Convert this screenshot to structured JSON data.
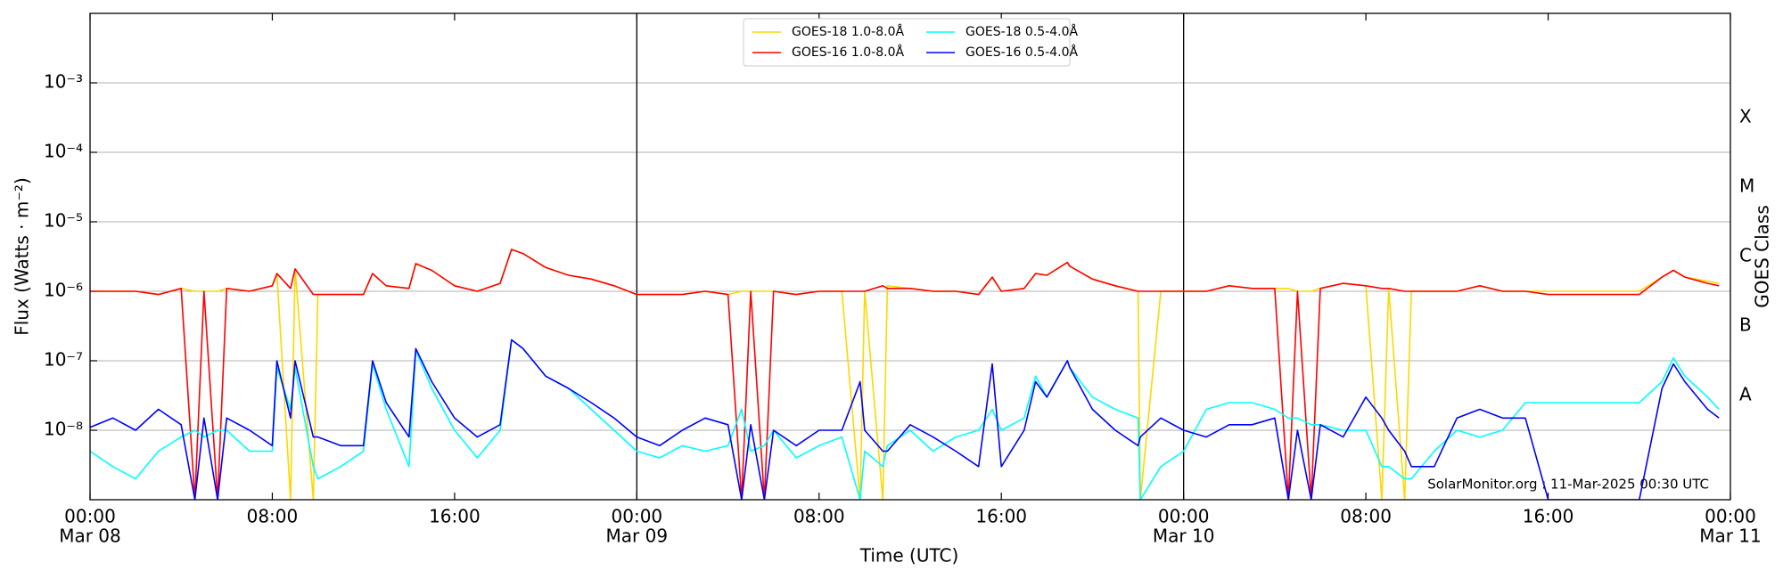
{
  "chart_data": {
    "type": "line",
    "x_label": "Time (UTC)",
    "y_label": "Flux (Watts · m⁻²)",
    "y2_label": "GOES Class",
    "annotation": "SolarMonitor.org : 11-Mar-2025 00:30 UTC",
    "ylog": true,
    "grid": true,
    "day_lines": true,
    "legend": "upper center",
    "xlim": [
      "Mar 08 00:00",
      "Mar 11 00:00"
    ],
    "xticks": [
      {
        "value": "Mar 08 00:00",
        "label": "00:00",
        "date": "Mar 08"
      },
      {
        "value": "Mar 08 08:00",
        "label": "08:00"
      },
      {
        "value": "Mar 08 16:00",
        "label": "16:00"
      },
      {
        "value": "Mar 09 00:00",
        "label": "00:00",
        "date": "Mar 09"
      },
      {
        "value": "Mar 09 08:00",
        "label": "08:00"
      },
      {
        "value": "Mar 09 16:00",
        "label": "16:00"
      },
      {
        "value": "Mar 10 00:00",
        "label": "00:00",
        "date": "Mar 10"
      },
      {
        "value": "Mar 10 08:00",
        "label": "08:00"
      },
      {
        "value": "Mar 10 16:00",
        "label": "16:00"
      },
      {
        "value": "Mar 11 00:00",
        "label": "00:00",
        "date": "Mar 11"
      }
    ],
    "ylim": [
      1e-09,
      0.01
    ],
    "yticks": [
      {
        "value": 1e-08,
        "label": "10⁻⁸"
      },
      {
        "value": 1e-07,
        "label": "10⁻⁷"
      },
      {
        "value": 1e-06,
        "label": "10⁻⁶"
      },
      {
        "value": 1e-05,
        "label": "10⁻⁵"
      },
      {
        "value": 0.0001,
        "label": "10⁻⁴"
      },
      {
        "value": 0.001,
        "label": "10⁻³"
      }
    ],
    "y2lim": [
      1e-09,
      0.01
    ],
    "y2ticks": [
      {
        "value": 3.16e-08,
        "label": "A"
      },
      {
        "value": 3.16e-07,
        "label": "B"
      },
      {
        "value": 3.16e-06,
        "label": "C"
      },
      {
        "value": 3.16e-05,
        "label": "M"
      },
      {
        "value": 0.000316,
        "label": "X"
      }
    ],
    "x": [
      "Mar 08 00:00",
      "Mar 08 01:00",
      "Mar 08 02:00",
      "Mar 08 03:00",
      "Mar 08 04:00",
      "Mar 08 04:36",
      "Mar 08 05:00",
      "Mar 08 05:36",
      "Mar 08 06:00",
      "Mar 08 07:00",
      "Mar 08 08:00",
      "Mar 08 08:12",
      "Mar 08 08:48",
      "Mar 08 09:00",
      "Mar 08 09:48",
      "Mar 08 10:00",
      "Mar 08 11:00",
      "Mar 08 12:00",
      "Mar 08 12:24",
      "Mar 08 13:00",
      "Mar 08 14:00",
      "Mar 08 14:18",
      "Mar 08 15:00",
      "Mar 08 16:00",
      "Mar 08 17:00",
      "Mar 08 18:00",
      "Mar 08 18:30",
      "Mar 08 19:00",
      "Mar 08 20:00",
      "Mar 08 21:00",
      "Mar 08 22:00",
      "Mar 08 23:00",
      "Mar 09 00:00",
      "Mar 09 01:00",
      "Mar 09 02:00",
      "Mar 09 03:00",
      "Mar 09 04:00",
      "Mar 09 04:36",
      "Mar 09 05:00",
      "Mar 09 05:36",
      "Mar 09 06:00",
      "Mar 09 07:00",
      "Mar 09 08:00",
      "Mar 09 09:00",
      "Mar 09 09:48",
      "Mar 09 10:00",
      "Mar 09 10:48",
      "Mar 09 11:00",
      "Mar 09 12:00",
      "Mar 09 13:00",
      "Mar 09 14:00",
      "Mar 09 15:00",
      "Mar 09 15:36",
      "Mar 09 16:00",
      "Mar 09 17:00",
      "Mar 09 17:30",
      "Mar 09 18:00",
      "Mar 09 18:54",
      "Mar 09 19:00",
      "Mar 09 20:00",
      "Mar 09 21:00",
      "Mar 09 22:00",
      "Mar 09 22:06",
      "Mar 09 23:00",
      "Mar 10 00:00",
      "Mar 10 01:00",
      "Mar 10 02:00",
      "Mar 10 03:00",
      "Mar 10 04:00",
      "Mar 10 04:36",
      "Mar 10 05:00",
      "Mar 10 05:36",
      "Mar 10 06:00",
      "Mar 10 07:00",
      "Mar 10 08:00",
      "Mar 10 08:42",
      "Mar 10 09:00",
      "Mar 10 09:42",
      "Mar 10 10:00",
      "Mar 10 11:00",
      "Mar 10 12:00",
      "Mar 10 13:00",
      "Mar 10 14:00",
      "Mar 10 15:00",
      "Mar 10 16:00",
      "Mar 10 17:00",
      "Mar 10 18:00",
      "Mar 10 19:00",
      "Mar 10 20:00",
      "Mar 10 21:00",
      "Mar 10 21:30",
      "Mar 10 22:00",
      "Mar 10 23:00",
      "Mar 10 23:30"
    ],
    "series": [
      {
        "name": "GOES-18 1.0-8.0Å",
        "color": "#ffd700",
        "values": [
          1e-06,
          1e-06,
          1e-06,
          9e-07,
          1.1e-06,
          1e-06,
          1e-06,
          1e-06,
          1.1e-06,
          1e-06,
          1.2e-06,
          1.8e-06,
          1e-09,
          2.1e-06,
          1e-09,
          9e-07,
          9e-07,
          9e-07,
          1.8e-06,
          1.2e-06,
          1.1e-06,
          2.5e-06,
          2e-06,
          1.2e-06,
          1e-06,
          1.3e-06,
          4e-06,
          3.5e-06,
          2.2e-06,
          1.7e-06,
          1.5e-06,
          1.2e-06,
          9e-07,
          9e-07,
          9e-07,
          1e-06,
          9e-07,
          1e-06,
          1e-06,
          1e-06,
          1e-06,
          9e-07,
          1e-06,
          1e-06,
          1e-09,
          1e-06,
          1e-09,
          1.2e-06,
          1.1e-06,
          1e-06,
          1e-06,
          9e-07,
          1.6e-06,
          1e-06,
          1.1e-06,
          1.8e-06,
          1.7e-06,
          2.6e-06,
          2.3e-06,
          1.5e-06,
          1.2e-06,
          1e-06,
          1e-09,
          1e-06,
          1e-06,
          1e-06,
          1.2e-06,
          1.1e-06,
          1.1e-06,
          1.1e-06,
          1e-06,
          1e-06,
          1.1e-06,
          1.3e-06,
          1.2e-06,
          1e-09,
          1.1e-06,
          1e-09,
          1e-06,
          1e-06,
          1e-06,
          1.2e-06,
          1e-06,
          1e-06,
          1e-06,
          1e-06,
          1e-06,
          1e-06,
          1e-06,
          1.6e-06,
          2e-06,
          1.6e-06,
          1.4e-06,
          1.3e-06
        ]
      },
      {
        "name": "GOES-16 1.0-8.0Å",
        "color": "#ff0000",
        "values": [
          1e-06,
          1e-06,
          1e-06,
          9e-07,
          1.1e-06,
          1e-09,
          1e-06,
          1e-09,
          1.1e-06,
          1e-06,
          1.2e-06,
          1.8e-06,
          1.1e-06,
          2.1e-06,
          9e-07,
          9e-07,
          9e-07,
          9e-07,
          1.8e-06,
          1.2e-06,
          1.1e-06,
          2.5e-06,
          2e-06,
          1.2e-06,
          1e-06,
          1.3e-06,
          4e-06,
          3.5e-06,
          2.2e-06,
          1.7e-06,
          1.5e-06,
          1.2e-06,
          9e-07,
          9e-07,
          9e-07,
          1e-06,
          9e-07,
          1e-09,
          1e-06,
          1e-09,
          1e-06,
          9e-07,
          1e-06,
          1e-06,
          1e-06,
          1e-06,
          1.2e-06,
          1.1e-06,
          1.1e-06,
          1e-06,
          1e-06,
          9e-07,
          1.6e-06,
          1e-06,
          1.1e-06,
          1.8e-06,
          1.7e-06,
          2.6e-06,
          2.3e-06,
          1.5e-06,
          1.2e-06,
          1e-06,
          1e-06,
          1e-06,
          1e-06,
          1e-06,
          1.2e-06,
          1.1e-06,
          1.1e-06,
          1e-09,
          1e-06,
          1e-09,
          1.1e-06,
          1.3e-06,
          1.2e-06,
          1.1e-06,
          1.1e-06,
          1e-06,
          1e-06,
          1e-06,
          1e-06,
          1.2e-06,
          1e-06,
          1e-06,
          9e-07,
          9e-07,
          9e-07,
          9e-07,
          9e-07,
          1.6e-06,
          2e-06,
          1.6e-06,
          1.3e-06,
          1.2e-06
        ]
      },
      {
        "name": "GOES-18 0.5-4.0Å",
        "color": "#00ffff",
        "values": [
          5e-09,
          3e-09,
          2e-09,
          5e-09,
          8e-09,
          1e-08,
          8e-09,
          1e-08,
          1e-08,
          5e-09,
          5e-09,
          8e-08,
          2e-08,
          8e-08,
          3e-09,
          2e-09,
          3e-09,
          5e-09,
          9e-08,
          2e-08,
          3e-09,
          1.4e-07,
          4e-08,
          1e-08,
          4e-09,
          1e-08,
          2e-07,
          1.5e-07,
          6e-08,
          4e-08,
          2e-08,
          1e-08,
          5e-09,
          4e-09,
          6e-09,
          5e-09,
          6e-09,
          2e-08,
          5e-09,
          6e-09,
          1e-08,
          4e-09,
          6e-09,
          8e-09,
          1e-09,
          5e-09,
          3e-09,
          6e-09,
          1e-08,
          5e-09,
          8e-09,
          1e-08,
          2e-08,
          1e-08,
          1.5e-08,
          6e-08,
          3e-08,
          1e-07,
          8e-08,
          3e-08,
          2e-08,
          1.5e-08,
          1e-09,
          3e-09,
          5e-09,
          2e-08,
          2.5e-08,
          2.5e-08,
          2e-08,
          1.5e-08,
          1.5e-08,
          1.2e-08,
          1.2e-08,
          1e-08,
          1e-08,
          3e-09,
          3e-09,
          2e-09,
          2e-09,
          5e-09,
          1e-08,
          8e-09,
          1e-08,
          2.5e-08,
          2.5e-08,
          2.5e-08,
          2.5e-08,
          2.5e-08,
          2.5e-08,
          5e-08,
          1.1e-07,
          6e-08,
          3e-08,
          2e-08
        ]
      },
      {
        "name": "GOES-16 0.5-4.0Å",
        "color": "#0000ff",
        "values": [
          1.1e-08,
          1.5e-08,
          1e-08,
          2e-08,
          1.2e-08,
          1e-09,
          1.5e-08,
          1e-09,
          1.5e-08,
          1e-08,
          6e-09,
          1e-07,
          1.5e-08,
          1e-07,
          8e-09,
          8e-09,
          6e-09,
          6e-09,
          1e-07,
          2.5e-08,
          8e-09,
          1.5e-07,
          5e-08,
          1.5e-08,
          8e-09,
          1.2e-08,
          2e-07,
          1.5e-07,
          6e-08,
          4e-08,
          2.5e-08,
          1.5e-08,
          8e-09,
          6e-09,
          1e-08,
          1.5e-08,
          1.2e-08,
          1e-09,
          1.2e-08,
          1e-09,
          1e-08,
          6e-09,
          1e-08,
          1e-08,
          5e-08,
          1e-08,
          5e-09,
          5e-09,
          1.2e-08,
          8e-09,
          5e-09,
          3e-09,
          9e-08,
          3e-09,
          1e-08,
          5e-08,
          3e-08,
          1e-07,
          8e-08,
          2e-08,
          1e-08,
          6e-09,
          8e-09,
          1.5e-08,
          1e-08,
          8e-09,
          1.2e-08,
          1.2e-08,
          1.5e-08,
          1e-09,
          1e-08,
          1e-09,
          1.2e-08,
          8e-09,
          3e-08,
          1.5e-08,
          1e-08,
          5e-09,
          3e-09,
          3e-09,
          1.5e-08,
          2e-08,
          1.5e-08,
          1.5e-08,
          1e-09,
          1e-09,
          1e-09,
          1e-09,
          1e-09,
          4e-08,
          9e-08,
          5e-08,
          2e-08,
          1.5e-08
        ]
      }
    ]
  }
}
